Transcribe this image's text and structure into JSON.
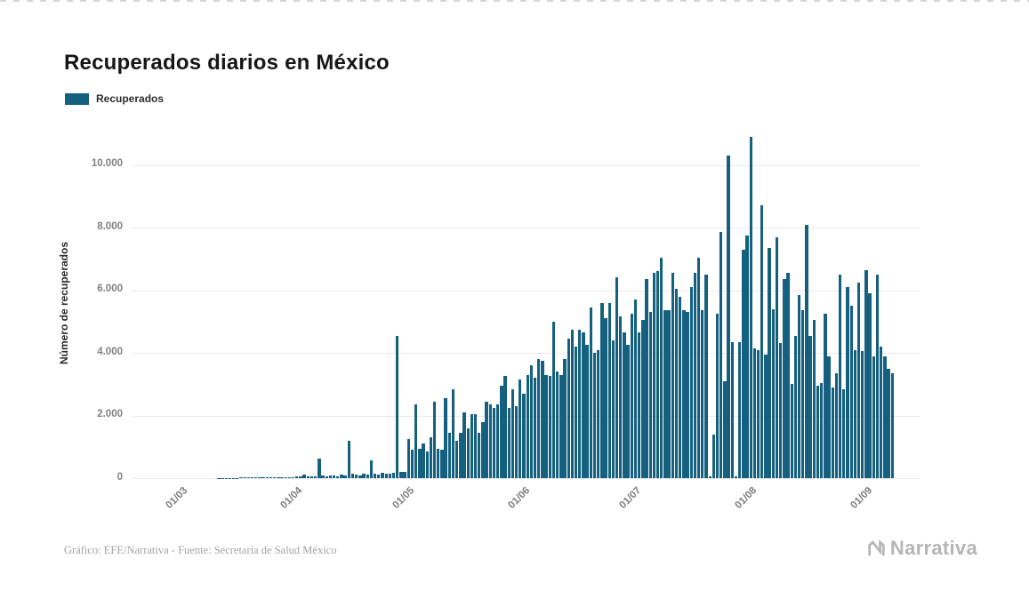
{
  "page": {
    "title": "Recuperados diarios en México",
    "legend": {
      "label": "Recuperados",
      "color": "#14607e"
    },
    "footer": {
      "credit": "Gráfico: EFE/Narrativa - Fuente: Secretaría de Salud México",
      "brand": "Narrativa"
    }
  },
  "chart_data": {
    "type": "bar",
    "title": "Recuperados diarios en México",
    "series_name": "Recuperados",
    "bar_color": "#14607e",
    "xlabel": "",
    "ylabel": "Número de recuperados",
    "ylim": [
      0,
      11150
    ],
    "grid": true,
    "legend_position": "top-left",
    "yticks": [
      0,
      2000,
      4000,
      6000,
      8000,
      10000
    ],
    "ytick_labels": [
      "0",
      "2.000",
      "4.000",
      "6.000",
      "8.000",
      "10.000"
    ],
    "xticks": {
      "labels": [
        "01/03",
        "01/04",
        "01/05",
        "01/06",
        "01/07",
        "01/08",
        "01/09"
      ],
      "day_index": [
        13,
        44,
        74,
        105,
        135,
        166,
        197
      ]
    },
    "values": [
      0,
      0,
      0,
      0,
      0,
      0,
      0,
      0,
      0,
      0,
      0,
      0,
      0,
      0,
      0,
      0,
      0,
      0,
      0,
      0,
      0,
      0,
      0,
      5,
      5,
      5,
      10,
      10,
      10,
      15,
      15,
      15,
      20,
      20,
      20,
      25,
      25,
      25,
      30,
      30,
      30,
      35,
      35,
      40,
      45,
      60,
      105,
      50,
      55,
      70,
      620,
      85,
      65,
      95,
      75,
      55,
      110,
      90,
      1180,
      155,
      120,
      95,
      145,
      105,
      560,
      135,
      115,
      165,
      135,
      155,
      175,
      4550,
      190,
      210,
      1250,
      900,
      2350,
      950,
      1100,
      850,
      1300,
      2450,
      950,
      900,
      2550,
      1450,
      2850,
      1200,
      1450,
      2100,
      1600,
      2050,
      2050,
      1450,
      1800,
      2450,
      2350,
      2250,
      2350,
      2950,
      3250,
      2250,
      2850,
      2300,
      3150,
      2700,
      3300,
      3600,
      3200,
      3800,
      3750,
      3300,
      3250,
      5000,
      3400,
      3300,
      3800,
      4450,
      4750,
      4200,
      4750,
      4650,
      4250,
      5450,
      4000,
      4100,
      5600,
      5100,
      5600,
      4400,
      6400,
      5150,
      4650,
      4250,
      5250,
      5700,
      4650,
      5050,
      6350,
      5300,
      6550,
      6600,
      7050,
      5350,
      5350,
      6550,
      6050,
      5800,
      5350,
      5300,
      6100,
      6550,
      7050,
      5350,
      6500,
      50,
      1400,
      5250,
      7850,
      3100,
      10300,
      4350,
      50,
      4350,
      7300,
      7750,
      10900,
      4150,
      4100,
      8700,
      3950,
      7350,
      5400,
      7700,
      4300,
      6350,
      6550,
      3000,
      4550,
      5850,
      5350,
      8100,
      4550,
      5050,
      2950,
      3050,
      5250,
      3900,
      2900,
      3350,
      6500,
      2850,
      6100,
      5500,
      4100,
      6250,
      4050,
      6650,
      5900,
      3900,
      6500,
      4200,
      3900,
      3500,
      3350
    ]
  }
}
